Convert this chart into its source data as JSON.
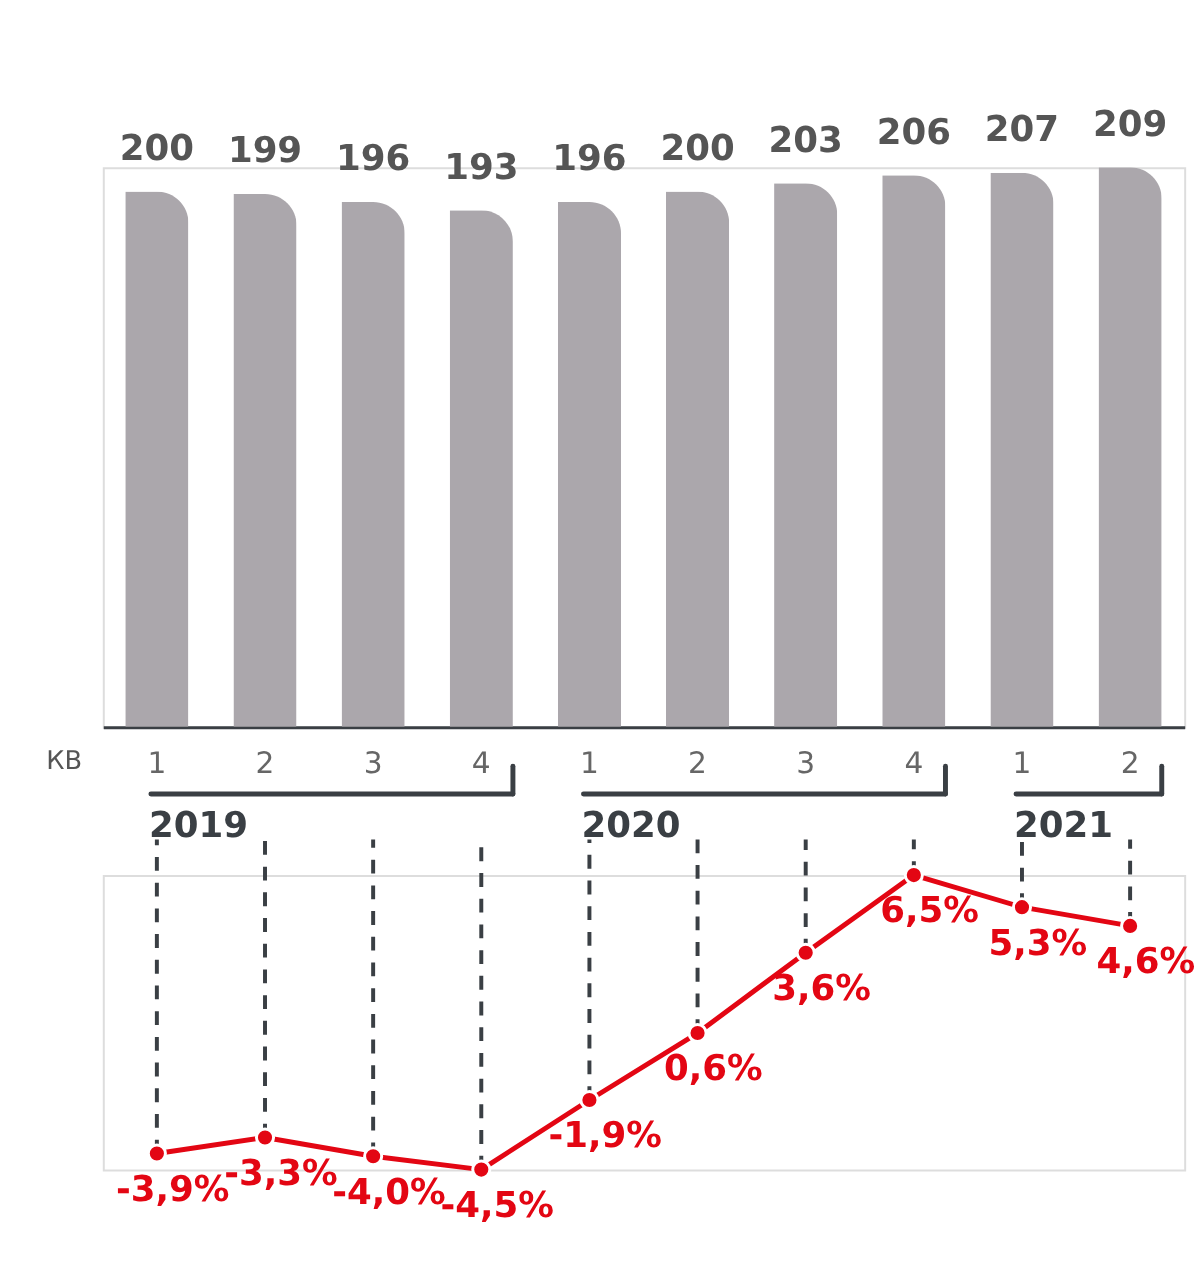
{
  "chart_data": [
    {
      "type": "bar",
      "categories": [
        "1",
        "2",
        "3",
        "4",
        "1",
        "2",
        "3",
        "4",
        "1",
        "2"
      ],
      "values": [
        200,
        199,
        196,
        193,
        196,
        200,
        203,
        206,
        207,
        209
      ],
      "color": "#aba7ac",
      "data_labels": true,
      "xlabel": "КВ",
      "annotations": [
        "2019",
        "2020",
        "2021"
      ],
      "tick_labels": "x"
    },
    {
      "type": "line",
      "categories": [
        "1",
        "2",
        "3",
        "4",
        "1",
        "2",
        "3",
        "4",
        "1",
        "2"
      ],
      "values": [
        -3.9,
        -3.3,
        -4.0,
        -4.5,
        -1.9,
        0.6,
        3.6,
        6.5,
        5.3,
        4.6
      ],
      "value_labels": [
        "-3,9%",
        "-3,3%",
        "-4,0%",
        "-4,5%",
        "-1,9%",
        "0,6%",
        "3,6%",
        "6,5%",
        "5,3%",
        "4,6%"
      ],
      "color": "#e30613",
      "marker": "circle",
      "line_style": "solid",
      "grid": "x",
      "tick_labels": false
    }
  ]
}
